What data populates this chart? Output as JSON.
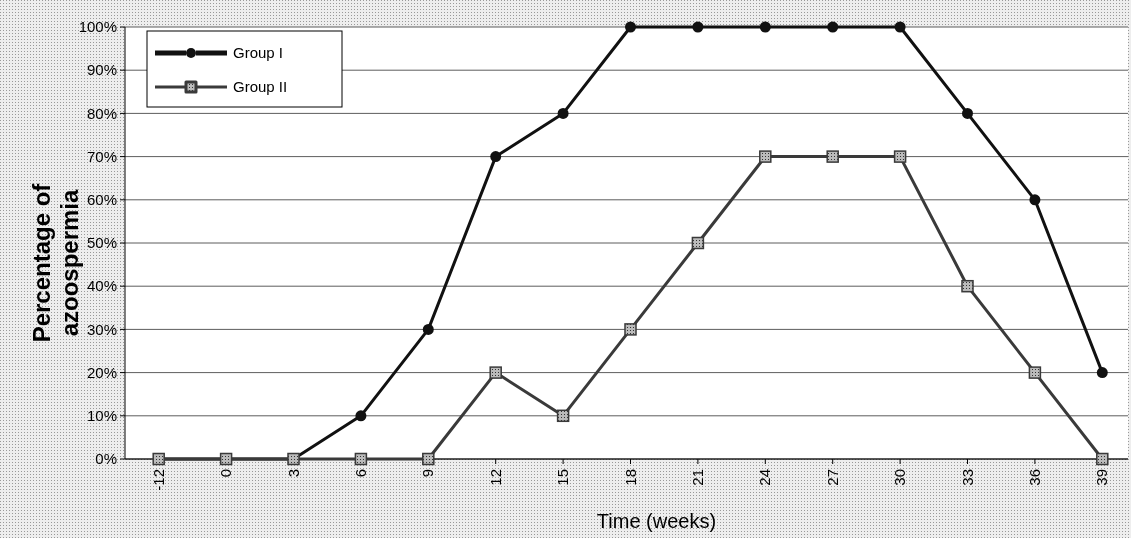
{
  "chart_data": {
    "type": "line",
    "xlabel": "Time (weeks)",
    "ylabel": "Percentage of azoospermia",
    "categories": [
      "-12",
      "0",
      "3",
      "6",
      "9",
      "12",
      "15",
      "18",
      "21",
      "24",
      "27",
      "30",
      "33",
      "36",
      "39"
    ],
    "series": [
      {
        "name": "Group I",
        "color": "#111111",
        "marker": "circle",
        "values": [
          0,
          0,
          0,
          10,
          30,
          70,
          80,
          100,
          100,
          100,
          100,
          100,
          80,
          60,
          20
        ]
      },
      {
        "name": "Group II",
        "color": "#3a3a3a",
        "marker": "square",
        "values": [
          0,
          0,
          0,
          0,
          0,
          20,
          10,
          30,
          50,
          70,
          70,
          70,
          40,
          20,
          0
        ]
      }
    ],
    "ylim": [
      0,
      100
    ],
    "yticks": [
      {
        "value": 0,
        "label": "0%"
      },
      {
        "value": 10,
        "label": "10%"
      },
      {
        "value": 20,
        "label": "20%"
      },
      {
        "value": 30,
        "label": "30%"
      },
      {
        "value": 40,
        "label": "40%"
      },
      {
        "value": 50,
        "label": "50%"
      },
      {
        "value": 60,
        "label": "60%"
      },
      {
        "value": 70,
        "label": "70%"
      },
      {
        "value": 80,
        "label": "80%"
      },
      {
        "value": 90,
        "label": "90%"
      },
      {
        "value": 100,
        "label": "100%"
      }
    ],
    "grid": "y",
    "legend": "top left",
    "line_style": "solid"
  }
}
